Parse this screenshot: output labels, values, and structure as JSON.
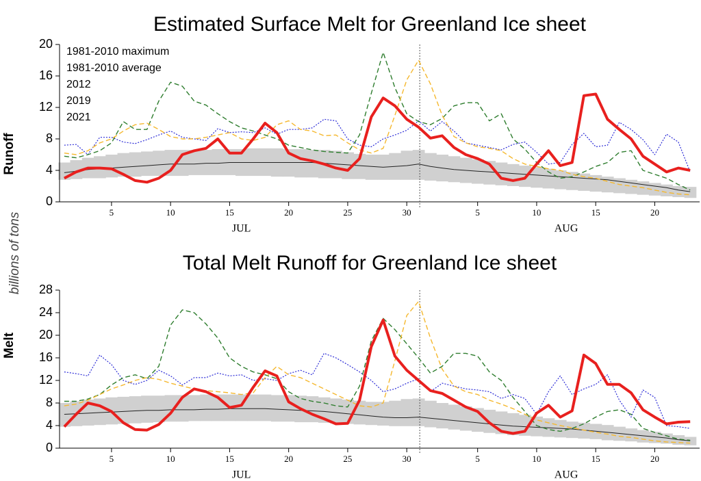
{
  "shared_ylabel": "billions of tons",
  "chart_data": [
    {
      "type": "line",
      "title": "Estimated Surface Melt for Greenland Ice sheet",
      "ylabel": "Runoff",
      "x": [
        1,
        2,
        3,
        4,
        5,
        6,
        7,
        8,
        9,
        10,
        11,
        12,
        13,
        14,
        15,
        16,
        17,
        18,
        19,
        20,
        21,
        22,
        23,
        24,
        25,
        26,
        27,
        28,
        29,
        30,
        31,
        32,
        33,
        34,
        35,
        36,
        37,
        38,
        39,
        40,
        41,
        42,
        43,
        44,
        45,
        46,
        47,
        48,
        49,
        50,
        51,
        52,
        53,
        54
      ],
      "xlim": [
        0.6,
        54.8
      ],
      "ylim": [
        0,
        20
      ],
      "yticks": [
        0,
        4,
        8,
        12,
        16,
        20
      ],
      "xticks": [
        5,
        10,
        15,
        20,
        25,
        30,
        {
          "value": 36,
          "label": "5"
        },
        {
          "value": 41,
          "label": "10"
        },
        {
          "value": 46,
          "label": "15"
        },
        {
          "value": 51,
          "label": "20"
        }
      ],
      "months": [
        {
          "label": "JUL",
          "x": 16
        },
        {
          "label": "AUG",
          "x": 43.5
        }
      ],
      "month_divider": 31.1,
      "legend": "upper left",
      "band_color": "#d0d0d0",
      "band_low": [
        2.8,
        2.9,
        3.0,
        3.0,
        3.1,
        3.2,
        3.2,
        3.3,
        3.3,
        3.3,
        3.3,
        3.4,
        3.4,
        3.4,
        3.4,
        3.3,
        3.3,
        3.3,
        3.2,
        3.2,
        3.1,
        3.1,
        3.0,
        3.0,
        2.9,
        2.9,
        2.8,
        2.8,
        2.8,
        2.8,
        2.8,
        2.7,
        2.6,
        2.5,
        2.4,
        2.3,
        2.2,
        2.1,
        2.0,
        1.9,
        1.8,
        1.7,
        1.6,
        1.5,
        1.4,
        1.3,
        1.2,
        1.1,
        1.0,
        0.9,
        0.8,
        0.7,
        0.6,
        0.5
      ],
      "band_high": [
        5.0,
        5.3,
        5.6,
        5.8,
        6.0,
        6.2,
        6.3,
        6.4,
        6.5,
        6.6,
        6.6,
        6.6,
        6.6,
        6.7,
        6.7,
        6.7,
        6.8,
        6.8,
        6.8,
        6.7,
        6.7,
        6.6,
        6.6,
        6.5,
        6.3,
        6.1,
        6.0,
        6.0,
        6.2,
        6.5,
        6.6,
        6.2,
        6.0,
        5.8,
        5.6,
        5.4,
        5.2,
        5.0,
        4.8,
        4.6,
        4.4,
        4.2,
        4.0,
        3.8,
        3.6,
        3.4,
        3.2,
        3.0,
        2.8,
        2.6,
        2.4,
        2.2,
        2.0,
        1.9
      ],
      "series": [
        {
          "name": "1981-2010 maximum",
          "color": "#2b2bd6",
          "style": "dotted",
          "values": [
            7.2,
            7.3,
            6.0,
            8.2,
            8.2,
            7.6,
            7.4,
            7.9,
            8.5,
            9.0,
            8.2,
            8.0,
            7.8,
            9.3,
            8.8,
            8.9,
            8.8,
            9.4,
            8.6,
            9.2,
            9.2,
            9.4,
            10.5,
            10.3,
            8.0,
            7.2,
            7.0,
            8.0,
            8.5,
            9.1,
            10.3,
            9.0,
            10.2,
            9.0,
            7.5,
            7.2,
            6.9,
            6.6,
            7.3,
            7.6,
            6.3,
            4.8,
            5.0,
            7.3,
            8.7,
            7.0,
            7.2,
            10.1,
            9.2,
            7.9,
            6.0,
            8.6,
            7.6,
            3.8
          ]
        },
        {
          "name": "1981-2010 average",
          "color": "#222222",
          "style": "solid",
          "values": [
            3.7,
            3.9,
            4.1,
            4.2,
            4.3,
            4.4,
            4.5,
            4.6,
            4.7,
            4.8,
            4.8,
            4.8,
            4.9,
            4.9,
            5.0,
            5.0,
            5.0,
            5.0,
            5.0,
            5.0,
            5.0,
            5.0,
            4.9,
            4.8,
            4.7,
            4.6,
            4.5,
            4.4,
            4.5,
            4.6,
            4.8,
            4.5,
            4.3,
            4.1,
            4.0,
            3.9,
            3.8,
            3.7,
            3.6,
            3.5,
            3.4,
            3.3,
            3.2,
            3.1,
            3.0,
            2.9,
            2.8,
            2.6,
            2.4,
            2.2,
            2.0,
            1.8,
            1.5,
            1.3
          ]
        },
        {
          "name": "2012",
          "color": "#2e7d2e",
          "style": "dashed",
          "values": [
            5.8,
            5.6,
            6.0,
            6.5,
            7.5,
            10.2,
            9.2,
            9.2,
            12.8,
            15.2,
            14.7,
            12.8,
            12.3,
            11.2,
            10.2,
            9.4,
            9.0,
            8.5,
            8.0,
            7.2,
            6.9,
            6.6,
            6.4,
            6.3,
            6.2,
            8.5,
            13.8,
            19.0,
            14.5,
            11.2,
            10.2,
            9.8,
            10.6,
            12.2,
            12.6,
            12.6,
            10.3,
            11.2,
            8.0,
            6.7,
            5.0,
            3.8,
            3.0,
            3.2,
            3.8,
            4.5,
            5.0,
            6.3,
            6.5,
            4.0,
            3.5,
            3.0,
            2.2,
            1.5
          ]
        },
        {
          "name": "2019",
          "color": "#f5b82e",
          "style": "dashed",
          "values": [
            6.2,
            6.0,
            6.5,
            7.5,
            8.0,
            9.0,
            9.8,
            10.0,
            9.2,
            8.3,
            8.0,
            8.0,
            8.2,
            8.5,
            8.8,
            8.0,
            7.8,
            8.2,
            9.8,
            10.3,
            9.2,
            9.0,
            8.4,
            8.5,
            7.5,
            6.6,
            6.2,
            6.8,
            11.0,
            15.5,
            18.0,
            15.0,
            11.0,
            8.3,
            7.5,
            7.0,
            6.8,
            6.5,
            5.5,
            4.8,
            4.5,
            4.2,
            4.0,
            3.5,
            3.2,
            3.0,
            2.6,
            2.2,
            2.0,
            1.8,
            1.5,
            1.2,
            1.0,
            0.9
          ]
        },
        {
          "name": "2021",
          "color": "#e8201e",
          "style": "thick",
          "values": [
            3.0,
            3.8,
            4.3,
            4.3,
            4.2,
            3.5,
            2.7,
            2.5,
            3.0,
            4.0,
            6.0,
            6.5,
            6.8,
            8.0,
            6.2,
            6.2,
            8.0,
            10.0,
            8.8,
            6.2,
            5.5,
            5.2,
            4.8,
            4.3,
            4.0,
            5.5,
            10.8,
            13.2,
            12.2,
            10.5,
            9.5,
            8.1,
            8.4,
            6.9,
            6.0,
            5.5,
            4.8,
            3.0,
            2.7,
            3.0,
            4.8,
            6.5,
            4.6,
            5.0,
            13.5,
            13.7,
            10.5,
            9.2,
            8.0,
            5.8,
            4.8,
            3.8,
            4.3,
            4.0
          ]
        }
      ]
    },
    {
      "type": "line",
      "title": "Total Melt Runoff for Greenland Ice sheet",
      "ylabel": "Melt",
      "x": [
        1,
        2,
        3,
        4,
        5,
        6,
        7,
        8,
        9,
        10,
        11,
        12,
        13,
        14,
        15,
        16,
        17,
        18,
        19,
        20,
        21,
        22,
        23,
        24,
        25,
        26,
        27,
        28,
        29,
        30,
        31,
        32,
        33,
        34,
        35,
        36,
        37,
        38,
        39,
        40,
        41,
        42,
        43,
        44,
        45,
        46,
        47,
        48,
        49,
        50,
        51,
        52,
        53,
        54
      ],
      "xlim": [
        0.6,
        54.8
      ],
      "ylim": [
        0,
        28
      ],
      "yticks": [
        0,
        4,
        8,
        12,
        16,
        20,
        24,
        28
      ],
      "xticks": [
        5,
        10,
        15,
        20,
        25,
        30,
        {
          "value": 36,
          "label": "5"
        },
        {
          "value": 41,
          "label": "10"
        },
        {
          "value": 46,
          "label": "15"
        },
        {
          "value": 51,
          "label": "20"
        }
      ],
      "months": [
        {
          "label": "JUL",
          "x": 16
        },
        {
          "label": "AUG",
          "x": 43.5
        }
      ],
      "month_divider": 31.1,
      "band_color": "#d0d0d0",
      "band_low": [
        3.8,
        3.9,
        4.0,
        4.1,
        4.2,
        4.3,
        4.4,
        4.5,
        4.6,
        4.7,
        4.7,
        4.8,
        4.8,
        4.8,
        4.8,
        4.8,
        4.8,
        4.8,
        4.7,
        4.7,
        4.6,
        4.6,
        4.5,
        4.4,
        4.3,
        4.2,
        4.1,
        4.0,
        3.9,
        3.9,
        3.9,
        3.7,
        3.5,
        3.3,
        3.1,
        2.9,
        2.7,
        2.5,
        2.3,
        2.2,
        2.1,
        2.0,
        1.9,
        1.8,
        1.7,
        1.6,
        1.4,
        1.3,
        1.2,
        1.0,
        0.9,
        0.8,
        0.6,
        0.5
      ],
      "band_high": [
        8.0,
        8.3,
        8.6,
        8.8,
        9.0,
        9.1,
        9.2,
        9.3,
        9.3,
        9.4,
        9.4,
        9.4,
        9.5,
        9.5,
        9.5,
        9.5,
        9.5,
        9.5,
        9.4,
        9.4,
        9.3,
        9.2,
        9.0,
        8.8,
        8.6,
        8.4,
        8.2,
        8.2,
        8.4,
        8.7,
        8.8,
        8.4,
        8.0,
        7.7,
        7.4,
        7.1,
        6.8,
        6.5,
        6.2,
        5.9,
        5.6,
        5.3,
        5.0,
        4.7,
        4.5,
        4.3,
        4.1,
        3.8,
        3.5,
        3.2,
        2.9,
        2.6,
        2.3,
        2.0
      ],
      "series": [
        {
          "color": "#2b2bd6",
          "style": "dotted",
          "values": [
            13.5,
            13.2,
            12.8,
            16.5,
            14.8,
            12.0,
            11.3,
            12.0,
            13.8,
            12.8,
            11.2,
            12.5,
            12.5,
            13.3,
            12.8,
            13.0,
            12.0,
            12.3,
            12.0,
            13.2,
            13.8,
            13.0,
            16.8,
            16.0,
            14.8,
            13.5,
            12.0,
            10.0,
            10.5,
            11.5,
            12.3,
            10.0,
            11.5,
            11.0,
            10.5,
            10.3,
            10.0,
            8.8,
            9.5,
            8.8,
            6.0,
            10.0,
            12.8,
            9.5,
            10.5,
            11.3,
            13.0,
            8.5,
            5.5,
            10.3,
            9.0,
            4.0,
            3.8,
            3.5
          ]
        },
        {
          "color": "#222222",
          "style": "solid",
          "values": [
            6.0,
            6.1,
            6.2,
            6.3,
            6.4,
            6.5,
            6.6,
            6.7,
            6.7,
            6.8,
            6.8,
            6.8,
            6.9,
            6.9,
            7.0,
            7.0,
            7.0,
            7.0,
            6.9,
            6.8,
            6.7,
            6.6,
            6.5,
            6.3,
            6.1,
            5.9,
            5.7,
            5.5,
            5.4,
            5.4,
            5.5,
            5.3,
            5.1,
            4.9,
            4.7,
            4.5,
            4.3,
            4.1,
            3.9,
            3.8,
            3.7,
            3.6,
            3.5,
            3.4,
            3.2,
            3.0,
            2.8,
            2.6,
            2.4,
            2.2,
            2.0,
            1.8,
            1.5,
            1.3
          ]
        },
        {
          "color": "#2e7d2e",
          "style": "dashed",
          "values": [
            8.3,
            8.3,
            8.7,
            9.5,
            11.2,
            12.5,
            13.0,
            12.3,
            14.5,
            21.8,
            24.5,
            24.0,
            22.0,
            19.5,
            16.0,
            14.5,
            13.5,
            13.0,
            12.3,
            10.0,
            8.8,
            8.3,
            8.0,
            7.5,
            7.3,
            11.0,
            19.0,
            23.0,
            21.0,
            18.5,
            16.0,
            13.3,
            14.5,
            16.8,
            16.8,
            16.3,
            13.5,
            12.0,
            9.0,
            6.5,
            4.0,
            3.3,
            3.0,
            3.5,
            4.3,
            5.5,
            6.5,
            6.8,
            6.0,
            3.5,
            2.8,
            2.2,
            1.6,
            1.4
          ]
        },
        {
          "color": "#f5b82e",
          "style": "dashed",
          "values": [
            7.5,
            7.8,
            8.5,
            9.5,
            10.5,
            11.2,
            12.0,
            12.5,
            12.2,
            11.5,
            11.0,
            10.5,
            10.2,
            10.0,
            9.8,
            9.5,
            9.8,
            12.5,
            14.5,
            13.0,
            12.5,
            11.5,
            10.5,
            9.5,
            8.5,
            7.5,
            7.3,
            8.0,
            15.5,
            23.5,
            26.0,
            19.5,
            14.0,
            11.0,
            10.0,
            9.5,
            8.5,
            7.8,
            7.0,
            6.0,
            5.0,
            4.5,
            4.0,
            3.6,
            3.2,
            2.8,
            2.5,
            2.1,
            1.9,
            1.6,
            1.3,
            1.1,
            1.0,
            0.9
          ]
        },
        {
          "color": "#e8201e",
          "style": "thick",
          "values": [
            3.8,
            6.0,
            8.0,
            7.5,
            6.5,
            4.5,
            3.3,
            3.2,
            4.2,
            6.2,
            9.0,
            10.5,
            10.0,
            9.0,
            7.2,
            7.6,
            10.8,
            13.7,
            12.8,
            8.2,
            7.0,
            6.0,
            5.2,
            4.3,
            4.4,
            8.5,
            18.0,
            22.7,
            16.3,
            13.8,
            12.0,
            10.2,
            9.7,
            8.5,
            7.3,
            6.5,
            4.5,
            3.0,
            2.6,
            3.0,
            6.2,
            7.6,
            5.5,
            6.6,
            16.5,
            15.0,
            11.3,
            11.3,
            9.8,
            6.8,
            5.5,
            4.3,
            4.6,
            4.7
          ]
        }
      ]
    }
  ]
}
